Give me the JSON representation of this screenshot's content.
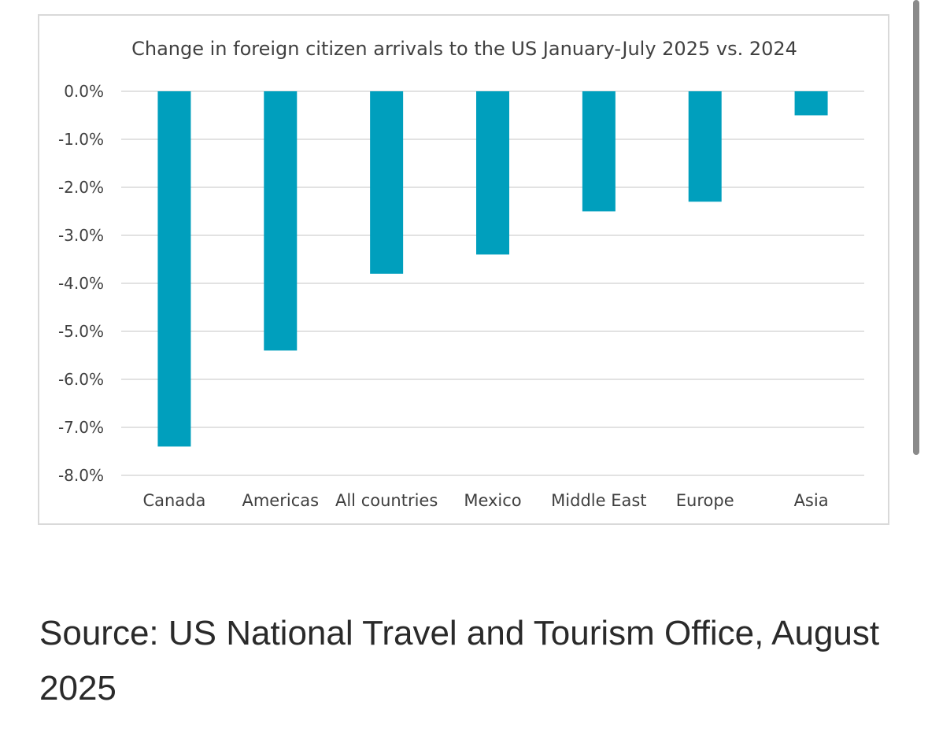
{
  "chart_data": {
    "type": "bar",
    "title": "Change in foreign citizen arrivals to the US January-July 2025 vs. 2024",
    "xlabel": "",
    "ylabel": "",
    "categories": [
      "Canada",
      "Americas",
      "All countries",
      "Mexico",
      "Middle East",
      "Europe",
      "Asia"
    ],
    "values": [
      -7.4,
      -5.4,
      -3.8,
      -3.4,
      -2.5,
      -2.3,
      -0.5
    ],
    "ylim": [
      -8.0,
      0.0
    ],
    "y_ticks": [
      0.0,
      -1.0,
      -2.0,
      -3.0,
      -4.0,
      -5.0,
      -6.0,
      -7.0,
      -8.0
    ],
    "y_tick_labels": [
      "0.0%",
      "-1.0%",
      "-2.0%",
      "-3.0%",
      "-4.0%",
      "-5.0%",
      "-6.0%",
      "-7.0%",
      "-8.0%"
    ],
    "grid": true,
    "legend": "none",
    "bar_color": "#009fbd"
  },
  "source": {
    "text": "Source: US National Travel and Tourism Office, August 2025"
  },
  "colors": {
    "bar": "#009fbd",
    "gridline": "#d9d9d9",
    "text": "#404040"
  }
}
